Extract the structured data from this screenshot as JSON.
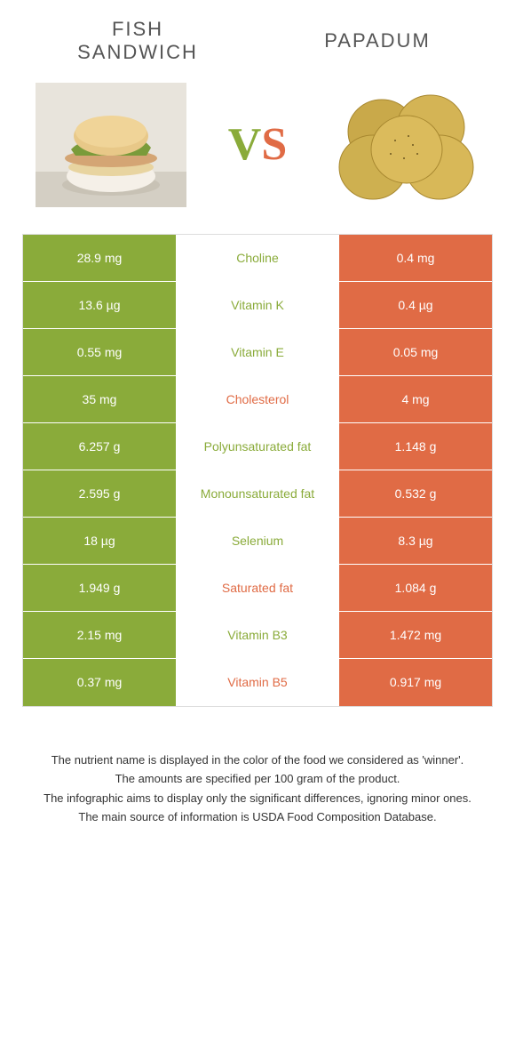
{
  "colors": {
    "left_food": "#8aab3a",
    "right_food": "#e06b45",
    "mid_bg": "#ffffff",
    "text_white": "#ffffff",
    "title_color": "#555555",
    "footer_color": "#333333",
    "border": "#dddddd"
  },
  "foods": {
    "left": {
      "name": "Fish Sandwich"
    },
    "right": {
      "name": "Papadum"
    }
  },
  "vs_label": {
    "v": "V",
    "s": "S"
  },
  "rows": [
    {
      "left": "28.9 mg",
      "label": "Choline",
      "right": "0.4 mg",
      "winner": "left"
    },
    {
      "left": "13.6 µg",
      "label": "Vitamin K",
      "right": "0.4 µg",
      "winner": "left"
    },
    {
      "left": "0.55 mg",
      "label": "Vitamin E",
      "right": "0.05 mg",
      "winner": "left"
    },
    {
      "left": "35 mg",
      "label": "Cholesterol",
      "right": "4 mg",
      "winner": "right"
    },
    {
      "left": "6.257 g",
      "label": "Polyunsaturated fat",
      "right": "1.148 g",
      "winner": "left"
    },
    {
      "left": "2.595 g",
      "label": "Monounsaturated fat",
      "right": "0.532 g",
      "winner": "left"
    },
    {
      "left": "18 µg",
      "label": "Selenium",
      "right": "8.3 µg",
      "winner": "left"
    },
    {
      "left": "1.949 g",
      "label": "Saturated fat",
      "right": "1.084 g",
      "winner": "right"
    },
    {
      "left": "2.15 mg",
      "label": "Vitamin B3",
      "right": "1.472 mg",
      "winner": "left"
    },
    {
      "left": "0.37 mg",
      "label": "Vitamin B5",
      "right": "0.917 mg",
      "winner": "right"
    }
  ],
  "footer": {
    "line1": "The nutrient name is displayed in the color of the food we considered as 'winner'.",
    "line2": "The amounts are specified per 100 gram of the product.",
    "line3": "The infographic aims to display only the significant differences, ignoring minor ones.",
    "line4": "The main source of information is USDA Food Composition Database."
  }
}
